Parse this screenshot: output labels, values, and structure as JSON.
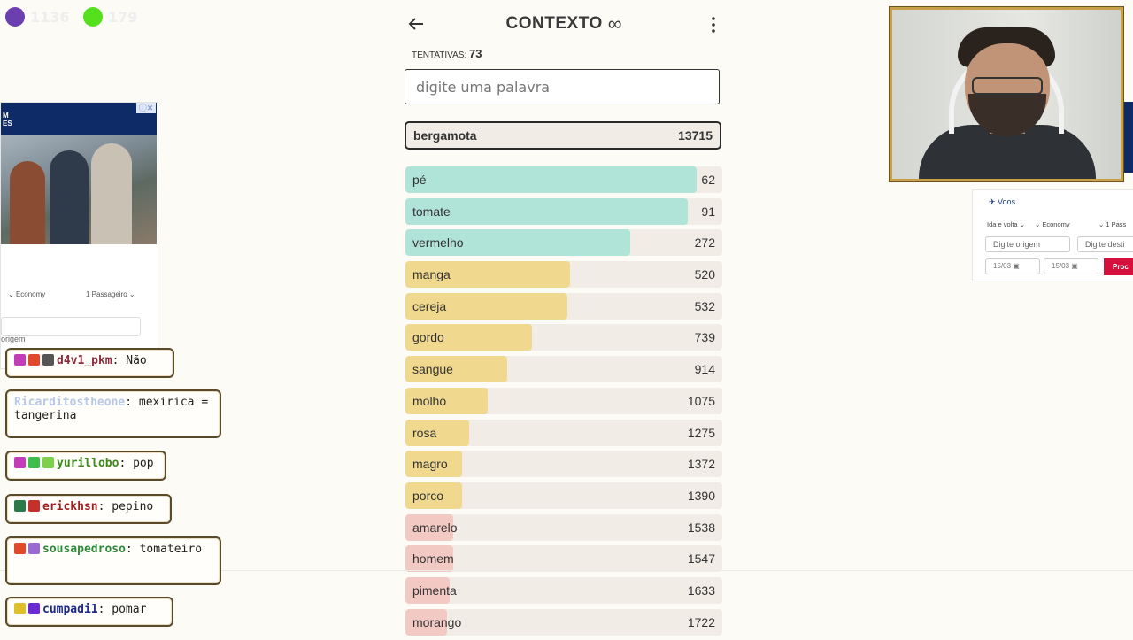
{
  "stream_stats": [
    {
      "value": "1136",
      "color": "#6b3fb0"
    },
    {
      "value": "179",
      "color": "#55e01d"
    }
  ],
  "game": {
    "title": "CONTEXTO",
    "mode_symbol": "∞",
    "tries_label": "TENTATIVAS:",
    "tries_count": "73",
    "input_placeholder": "digite uma palavra",
    "last_guess": {
      "word": "bergamota",
      "rank": "13715",
      "color": "#f3c9c4"
    },
    "colors": {
      "green": "#b1e4d9",
      "yellow": "#f0d98e",
      "red": "#f3c9c4",
      "track": "#f1ede6"
    },
    "guesses": [
      {
        "word": "pé",
        "rank": "62",
        "level": 0.92,
        "color": "#b1e4d9"
      },
      {
        "word": "tomate",
        "rank": "91",
        "level": 0.89,
        "color": "#b1e4d9"
      },
      {
        "word": "vermelho",
        "rank": "272",
        "level": 0.71,
        "color": "#b1e4d9"
      },
      {
        "word": "manga",
        "rank": "520",
        "level": 0.52,
        "color": "#f0d98e"
      },
      {
        "word": "cereja",
        "rank": "532",
        "level": 0.51,
        "color": "#f0d98e"
      },
      {
        "word": "gordo",
        "rank": "739",
        "level": 0.4,
        "color": "#f0d98e"
      },
      {
        "word": "sangue",
        "rank": "914",
        "level": 0.32,
        "color": "#f0d98e"
      },
      {
        "word": "molho",
        "rank": "1075",
        "level": 0.26,
        "color": "#f0d98e"
      },
      {
        "word": "rosa",
        "rank": "1275",
        "level": 0.2,
        "color": "#f0d98e"
      },
      {
        "word": "magro",
        "rank": "1372",
        "level": 0.18,
        "color": "#f0d98e"
      },
      {
        "word": "porco",
        "rank": "1390",
        "level": 0.18,
        "color": "#f0d98e"
      },
      {
        "word": "amarelo",
        "rank": "1538",
        "level": 0.15,
        "color": "#f3c9c4"
      },
      {
        "word": "homem",
        "rank": "1547",
        "level": 0.15,
        "color": "#f3c9c4"
      },
      {
        "word": "pimenta",
        "rank": "1633",
        "level": 0.14,
        "color": "#f3c9c4"
      },
      {
        "word": "morango",
        "rank": "1722",
        "level": 0.13,
        "color": "#f3c9c4"
      }
    ]
  },
  "ad_left": {
    "brand": "M\nES",
    "economy": "Economy",
    "passengers": "1 Passageiro",
    "origin_label": "origem"
  },
  "ad_right": {
    "title": "Voos",
    "trip": "Ida e volta",
    "economy": "Economy",
    "passengers": "1 Pass",
    "origin_placeholder": "Digite origem",
    "dest_placeholder": "Digite desti",
    "date1": "15/03",
    "date2": "15/03",
    "search": "Proc"
  },
  "chat": [
    {
      "user": "d4v1_pkm",
      "user_color": "#8a2a3a",
      "message": "Não",
      "icons": [
        "#c43db8",
        "#e04a2a",
        "#555555"
      ]
    },
    {
      "user": "Ricarditostheone",
      "user_color": "#b8c8e6",
      "message": "mexirica = tangerina",
      "icons": []
    },
    {
      "user": "yurillobo",
      "user_color": "#3d8a1c",
      "message": "pop",
      "icons": [
        "#c43db8",
        "#3dbd4a",
        "#7ad24a"
      ]
    },
    {
      "user": "erickhsn",
      "user_color": "#a02020",
      "message": "pepino",
      "icons": [
        "#2a7a4a",
        "#c4302a"
      ]
    },
    {
      "user": "sousapedroso",
      "user_color": "#2a8a3a",
      "message": "tomateiro",
      "icons": [
        "#e04a2a",
        "#9a6ad2"
      ]
    },
    {
      "user": "cumpadi1",
      "user_color": "#1d2a8a",
      "message": "pomar",
      "icons": [
        "#e0c02a",
        "#6a2ad2"
      ]
    }
  ]
}
